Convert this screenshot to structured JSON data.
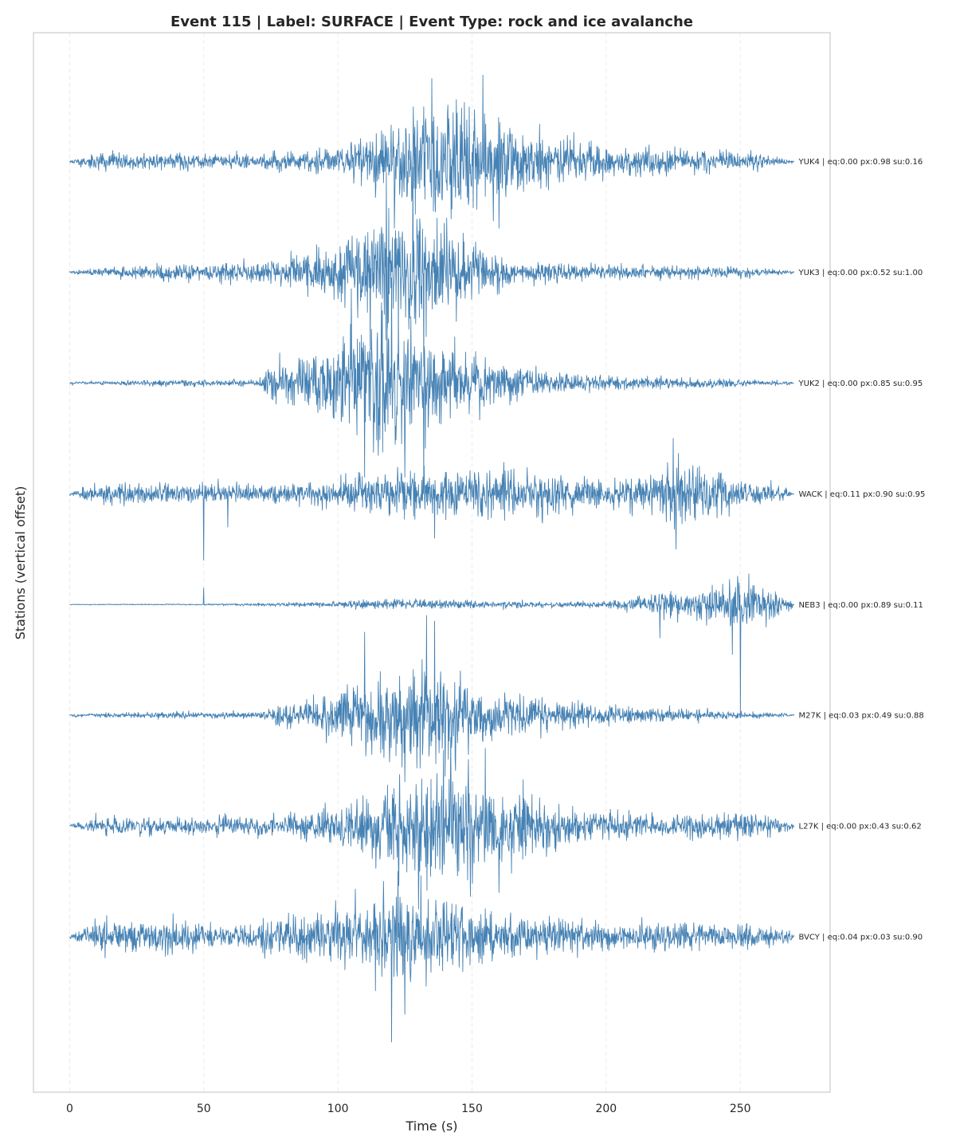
{
  "chart_data": {
    "type": "line",
    "title": "Event 115 | Label: SURFACE | Event Type: rock and ice avalanche",
    "xlabel": "Time (s)",
    "ylabel": "Stations (vertical offset)",
    "xlim": [
      -13.5,
      283.5
    ],
    "xticks": [
      0,
      50,
      100,
      150,
      200,
      250
    ],
    "grid": "vertical dashed",
    "line_color": "#4682b4",
    "duration": 270,
    "series": [
      {
        "station": "YUK4",
        "label": "YUK4 | eq:0.00 px:0.98 su:0.16",
        "offset": 7,
        "envelope": [
          [
            0,
            0.02
          ],
          [
            10,
            0.12
          ],
          [
            30,
            0.12
          ],
          [
            60,
            0.1
          ],
          [
            90,
            0.15
          ],
          [
            110,
            0.3
          ],
          [
            120,
            0.5
          ],
          [
            130,
            0.7
          ],
          [
            150,
            0.8
          ],
          [
            160,
            0.7
          ],
          [
            170,
            0.45
          ],
          [
            185,
            0.3
          ],
          [
            200,
            0.22
          ],
          [
            230,
            0.18
          ],
          [
            255,
            0.12
          ],
          [
            270,
            0.02
          ]
        ],
        "spikes": [
          [
            135,
            0.75
          ],
          [
            154,
            0.78
          ],
          [
            121,
            -0.6
          ],
          [
            160,
            -0.6
          ]
        ]
      },
      {
        "station": "YUK3",
        "label": "YUK3 | eq:0.00 px:0.52 su:1.00",
        "offset": 6,
        "envelope": [
          [
            0,
            0.02
          ],
          [
            10,
            0.05
          ],
          [
            40,
            0.12
          ],
          [
            70,
            0.15
          ],
          [
            90,
            0.3
          ],
          [
            105,
            0.55
          ],
          [
            115,
            0.8
          ],
          [
            125,
            0.9
          ],
          [
            135,
            0.8
          ],
          [
            150,
            0.4
          ],
          [
            165,
            0.2
          ],
          [
            200,
            0.1
          ],
          [
            250,
            0.08
          ],
          [
            270,
            0.02
          ]
        ],
        "spikes": [
          [
            118,
            0.9
          ],
          [
            128,
            0.95
          ],
          [
            112,
            -0.7
          ],
          [
            132,
            -0.85
          ]
        ]
      },
      {
        "station": "YUK2",
        "label": "YUK2 | eq:0.00 px:0.85 su:0.95",
        "offset": 5,
        "envelope": [
          [
            0,
            0.02
          ],
          [
            20,
            0.04
          ],
          [
            70,
            0.05
          ],
          [
            75,
            0.3
          ],
          [
            90,
            0.35
          ],
          [
            100,
            0.6
          ],
          [
            110,
            0.9
          ],
          [
            120,
            1.0
          ],
          [
            130,
            0.8
          ],
          [
            145,
            0.5
          ],
          [
            160,
            0.3
          ],
          [
            180,
            0.15
          ],
          [
            220,
            0.08
          ],
          [
            250,
            0.06
          ],
          [
            270,
            0.02
          ]
        ],
        "spikes": [
          [
            105,
            0.85
          ],
          [
            120,
            0.95
          ],
          [
            110,
            -0.85
          ],
          [
            125,
            -0.85
          ],
          [
            132,
            -0.9
          ]
        ]
      },
      {
        "station": "WACK",
        "label": "WACK | eq:0.11 px:0.90 su:0.95",
        "offset": 4,
        "envelope": [
          [
            0,
            0.02
          ],
          [
            10,
            0.15
          ],
          [
            40,
            0.15
          ],
          [
            70,
            0.12
          ],
          [
            100,
            0.2
          ],
          [
            120,
            0.3
          ],
          [
            150,
            0.35
          ],
          [
            180,
            0.3
          ],
          [
            200,
            0.2
          ],
          [
            215,
            0.25
          ],
          [
            225,
            0.55
          ],
          [
            235,
            0.35
          ],
          [
            250,
            0.2
          ],
          [
            265,
            0.12
          ],
          [
            270,
            0.02
          ]
        ],
        "spikes": [
          [
            50,
            0.8
          ],
          [
            50,
            -0.6
          ],
          [
            59,
            0.65
          ],
          [
            59,
            -0.3
          ],
          [
            136,
            -0.4
          ],
          [
            225,
            0.5
          ],
          [
            226,
            -0.5
          ]
        ]
      },
      {
        "station": "NEB3",
        "label": "NEB3 | eq:0.00 px:0.89 su:0.11",
        "offset": 3,
        "envelope": [
          [
            0,
            0.005
          ],
          [
            50,
            0.01
          ],
          [
            90,
            0.03
          ],
          [
            120,
            0.08
          ],
          [
            150,
            0.06
          ],
          [
            180,
            0.04
          ],
          [
            200,
            0.05
          ],
          [
            215,
            0.12
          ],
          [
            220,
            0.25
          ],
          [
            230,
            0.18
          ],
          [
            245,
            0.3
          ],
          [
            250,
            0.35
          ],
          [
            260,
            0.25
          ],
          [
            270,
            0.05
          ]
        ],
        "spikes": [
          [
            50,
            -0.55
          ],
          [
            50,
            0.15
          ],
          [
            247,
            0.5
          ],
          [
            247,
            -0.45
          ],
          [
            250,
            0.8
          ],
          [
            250,
            -1.0
          ],
          [
            220,
            0.28
          ],
          [
            220,
            -0.3
          ]
        ]
      },
      {
        "station": "M27K",
        "label": "M27K | eq:0.03 px:0.49 su:0.88",
        "offset": 2,
        "envelope": [
          [
            0,
            0.02
          ],
          [
            20,
            0.04
          ],
          [
            70,
            0.05
          ],
          [
            80,
            0.15
          ],
          [
            95,
            0.25
          ],
          [
            110,
            0.5
          ],
          [
            125,
            0.75
          ],
          [
            135,
            0.8
          ],
          [
            145,
            0.55
          ],
          [
            160,
            0.35
          ],
          [
            180,
            0.2
          ],
          [
            220,
            0.1
          ],
          [
            270,
            0.02
          ]
        ],
        "spikes": [
          [
            133,
            0.9
          ],
          [
            136,
            0.85
          ],
          [
            110,
            0.75
          ],
          [
            125,
            -0.6
          ],
          [
            140,
            -0.55
          ]
        ]
      },
      {
        "station": "L27K",
        "label": "L27K | eq:0.00 px:0.43 su:0.62",
        "offset": 1,
        "envelope": [
          [
            0,
            0.02
          ],
          [
            10,
            0.12
          ],
          [
            40,
            0.12
          ],
          [
            80,
            0.15
          ],
          [
            100,
            0.3
          ],
          [
            115,
            0.5
          ],
          [
            125,
            0.75
          ],
          [
            140,
            0.85
          ],
          [
            155,
            0.7
          ],
          [
            170,
            0.45
          ],
          [
            190,
            0.25
          ],
          [
            220,
            0.15
          ],
          [
            250,
            0.2
          ],
          [
            265,
            0.15
          ],
          [
            270,
            0.02
          ]
        ],
        "spikes": [
          [
            155,
            0.7
          ],
          [
            142,
            0.8
          ],
          [
            130,
            -0.75
          ],
          [
            160,
            -0.6
          ]
        ]
      },
      {
        "station": "BVCY",
        "label": "BVCY | eq:0.04 px:0.03 su:0.90",
        "offset": 0,
        "envelope": [
          [
            0,
            0.02
          ],
          [
            10,
            0.2
          ],
          [
            30,
            0.25
          ],
          [
            60,
            0.15
          ],
          [
            85,
            0.3
          ],
          [
            110,
            0.5
          ],
          [
            120,
            0.7
          ],
          [
            130,
            0.6
          ],
          [
            150,
            0.4
          ],
          [
            170,
            0.25
          ],
          [
            200,
            0.2
          ],
          [
            240,
            0.18
          ],
          [
            255,
            0.2
          ],
          [
            268,
            0.12
          ],
          [
            270,
            0.02
          ]
        ],
        "spikes": [
          [
            120,
            -0.95
          ],
          [
            125,
            -0.7
          ],
          [
            131,
            0.55
          ],
          [
            117,
            0.5
          ]
        ]
      }
    ]
  }
}
